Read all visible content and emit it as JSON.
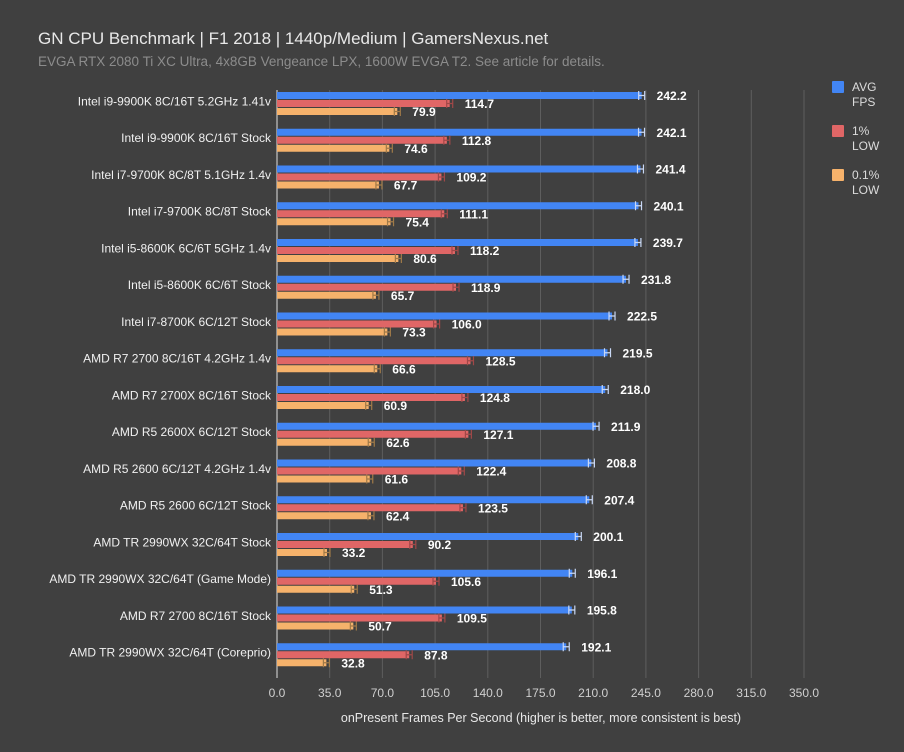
{
  "chart_data": {
    "type": "bar",
    "orientation": "horizontal",
    "title": "GN CPU Benchmark | F1 2018 | 1440p/Medium | GamersNexus.net",
    "subtitle": "EVGA RTX 2080 Ti XC Ultra, 4x8GB Vengeance LPX, 1600W EVGA T2. See article for details.",
    "xlabel": "onPresent Frames Per Second (higher is better, more consistent is best)",
    "xlim": [
      0,
      350
    ],
    "xticks": [
      "0.0",
      "35.0",
      "70.0",
      "105.0",
      "140.0",
      "175.0",
      "210.0",
      "245.0",
      "280.0",
      "315.0",
      "350.0"
    ],
    "grid": true,
    "legend_placement": "right",
    "categories": [
      "Intel i9-9900K 8C/16T 5.2GHz 1.41v",
      "Intel i9-9900K 8C/16T Stock",
      "Intel i7-9700K 8C/8T 5.1GHz 1.4v",
      "Intel i7-9700K 8C/8T Stock",
      "Intel i5-8600K 6C/6T 5GHz 1.4v",
      "Intel i5-8600K 6C/6T Stock",
      "Intel i7-8700K 6C/12T Stock",
      "AMD R7 2700 8C/16T 4.2GHz 1.4v",
      "AMD R7 2700X 8C/16T Stock",
      "AMD R5 2600X 6C/12T Stock",
      "AMD R5 2600 6C/12T 4.2GHz 1.4v",
      "AMD R5 2600 6C/12T Stock",
      "AMD TR 2990WX 32C/64T Stock",
      "AMD TR 2990WX 32C/64T (Game Mode)",
      "AMD R7 2700 8C/16T Stock",
      "AMD TR 2990WX 32C/64T (Coreprio)"
    ],
    "series": [
      {
        "name": "AVG FPS",
        "color": "#4285f4",
        "values": [
          242.2,
          242.1,
          241.4,
          240.1,
          239.7,
          231.8,
          222.5,
          219.5,
          218.0,
          211.9,
          208.8,
          207.4,
          200.1,
          196.1,
          195.8,
          192.1
        ]
      },
      {
        "name": "1% LOW",
        "color": "#e06666",
        "values": [
          114.7,
          112.8,
          109.2,
          111.1,
          118.2,
          118.9,
          106.0,
          128.5,
          124.8,
          127.1,
          122.4,
          123.5,
          90.2,
          105.6,
          109.5,
          87.8
        ]
      },
      {
        "name": "0.1% LOW",
        "color": "#f6b26b",
        "values": [
          79.9,
          74.6,
          67.7,
          75.4,
          80.6,
          65.7,
          73.3,
          66.6,
          60.9,
          62.6,
          61.6,
          62.4,
          33.2,
          51.3,
          50.7,
          32.8
        ]
      }
    ],
    "legend": [
      {
        "line1": "AVG",
        "line2": "FPS"
      },
      {
        "line1": "1%",
        "line2": "LOW"
      },
      {
        "line1": "0.1%",
        "line2": "LOW"
      }
    ]
  }
}
